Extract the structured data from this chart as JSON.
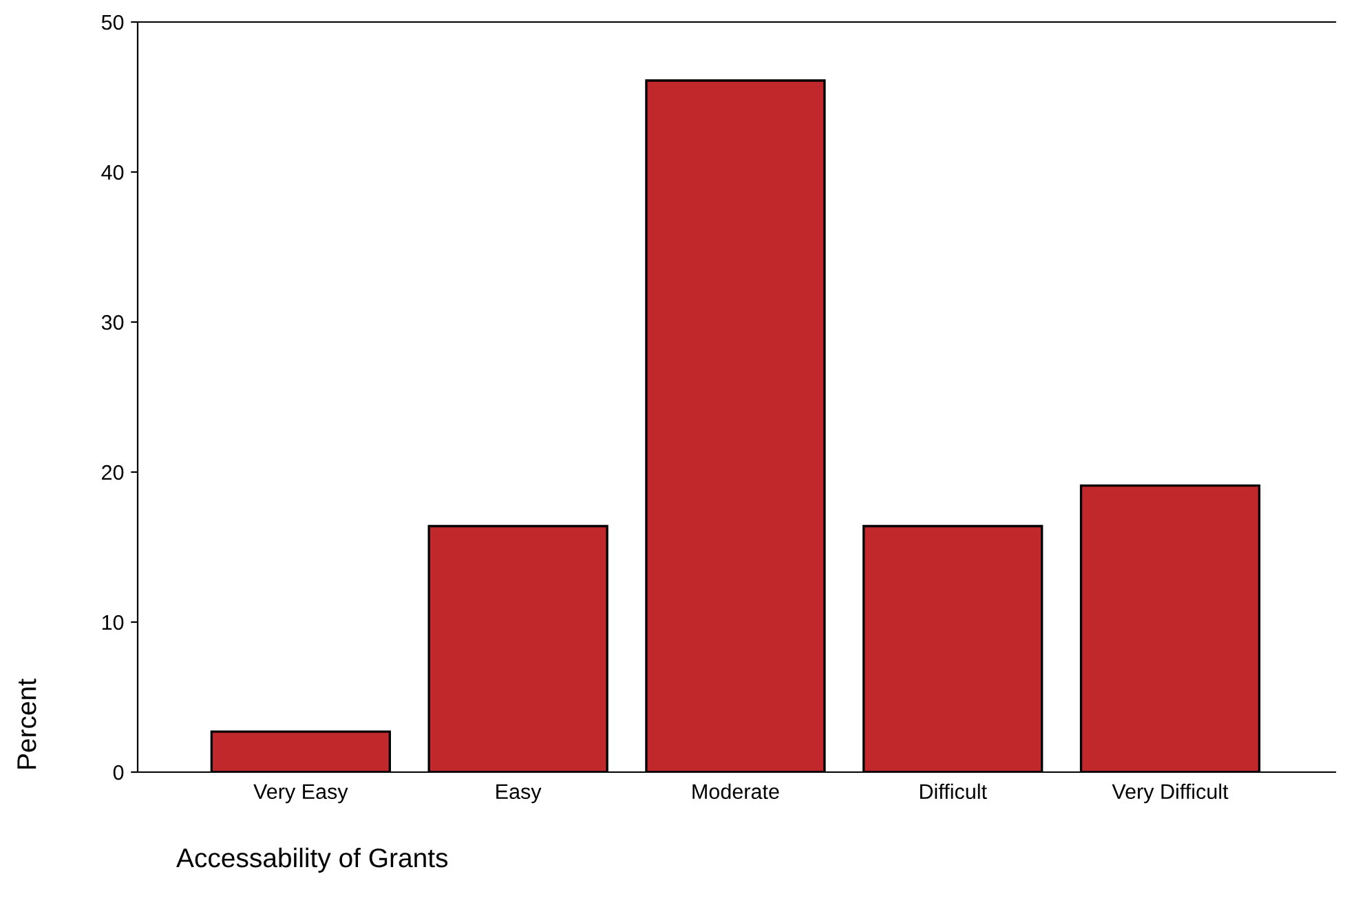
{
  "chart_data": {
    "type": "bar",
    "xlabel": "Accessability of Grants",
    "ylabel": "Percent",
    "categories": [
      "Very Easy",
      "Easy",
      "Moderate",
      "Difficult",
      "Very Difficult"
    ],
    "values": [
      2.7,
      16.4,
      46.1,
      16.4,
      19.1
    ],
    "color": "#c0282c",
    "ylim": [
      0,
      50
    ],
    "yticks": [
      0,
      10,
      20,
      30,
      40,
      50
    ],
    "grid": false
  }
}
